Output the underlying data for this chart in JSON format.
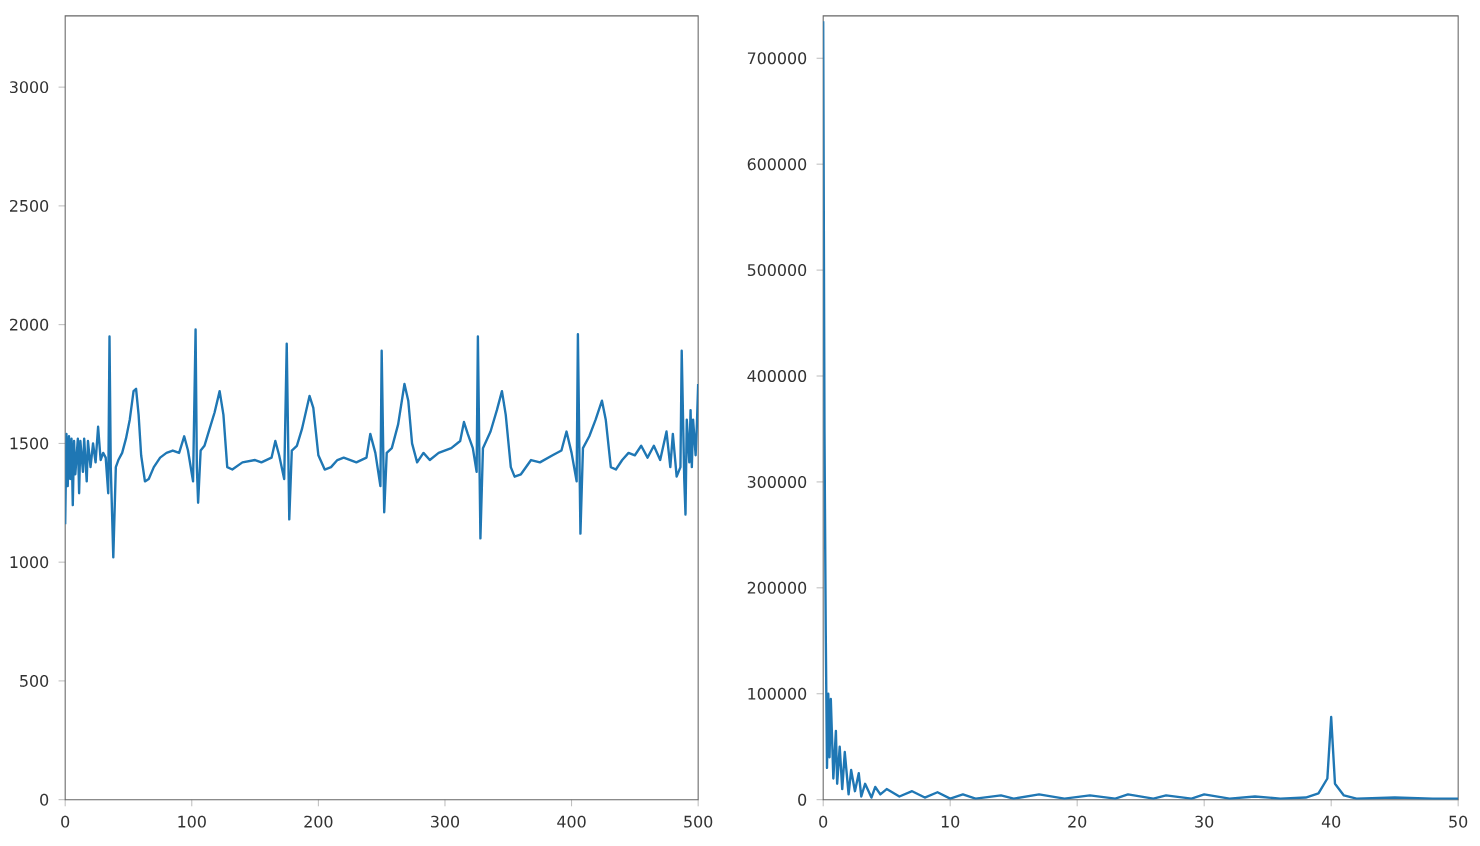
{
  "chart_data": [
    {
      "type": "line",
      "color": "#1f77b4",
      "xlim": [
        0,
        500
      ],
      "ylim": [
        0,
        3300
      ],
      "xticks": [
        0,
        100,
        200,
        300,
        400,
        500
      ],
      "yticks": [
        0,
        500,
        1000,
        1500,
        2000,
        2500,
        3000
      ],
      "x": [
        0,
        1,
        2,
        3,
        4,
        5,
        6,
        7,
        8,
        10,
        11,
        12,
        14,
        15,
        17,
        18,
        20,
        22,
        24,
        26,
        28,
        30,
        32,
        34,
        35,
        36,
        38,
        40,
        42,
        45,
        48,
        51,
        54,
        56,
        58,
        60,
        63,
        66,
        70,
        75,
        80,
        85,
        90,
        94,
        97,
        101,
        103,
        104,
        105,
        107,
        110,
        114,
        118,
        122,
        125,
        128,
        132,
        140,
        150,
        155,
        163,
        166,
        169,
        173,
        175,
        177,
        179,
        183,
        187,
        193,
        196,
        200,
        205,
        210,
        215,
        220,
        230,
        238,
        241,
        245,
        249,
        250,
        252,
        254,
        258,
        263,
        268,
        271,
        274,
        278,
        283,
        288,
        295,
        305,
        312,
        315,
        318,
        322,
        325,
        326,
        328,
        330,
        336,
        341,
        345,
        348,
        352,
        355,
        360,
        368,
        375,
        385,
        392,
        396,
        400,
        404,
        405,
        407,
        409,
        414,
        419,
        424,
        427,
        431,
        435,
        440,
        445,
        450,
        455,
        460,
        465,
        470,
        475,
        478,
        480,
        483,
        486,
        487,
        489,
        490,
        491,
        493,
        494,
        495,
        496,
        498,
        499,
        500
      ],
      "values": [
        1160,
        1540,
        1320,
        1530,
        1350,
        1520,
        1240,
        1510,
        1370,
        1520,
        1290,
        1510,
        1380,
        1520,
        1340,
        1510,
        1400,
        1500,
        1420,
        1570,
        1430,
        1460,
        1440,
        1290,
        1950,
        1400,
        1020,
        1400,
        1430,
        1460,
        1520,
        1600,
        1720,
        1730,
        1620,
        1450,
        1340,
        1350,
        1400,
        1440,
        1460,
        1470,
        1460,
        1530,
        1470,
        1340,
        1980,
        1400,
        1250,
        1470,
        1490,
        1560,
        1630,
        1720,
        1620,
        1400,
        1390,
        1420,
        1430,
        1420,
        1440,
        1510,
        1450,
        1350,
        1920,
        1180,
        1470,
        1490,
        1560,
        1700,
        1650,
        1450,
        1390,
        1400,
        1430,
        1440,
        1420,
        1440,
        1540,
        1460,
        1320,
        1890,
        1210,
        1460,
        1480,
        1580,
        1750,
        1680,
        1500,
        1420,
        1460,
        1430,
        1460,
        1480,
        1510,
        1590,
        1540,
        1480,
        1380,
        1950,
        1100,
        1480,
        1550,
        1640,
        1720,
        1620,
        1400,
        1360,
        1370,
        1430,
        1420,
        1450,
        1470,
        1550,
        1460,
        1340,
        1960,
        1120,
        1480,
        1530,
        1600,
        1680,
        1600,
        1400,
        1390,
        1430,
        1460,
        1450,
        1490,
        1440,
        1490,
        1430,
        1550,
        1400,
        1540,
        1360,
        1400,
        1890,
        1350,
        1200,
        1600,
        1420,
        1640,
        1400,
        1600,
        1450,
        1580,
        1750
      ]
    },
    {
      "type": "line",
      "color": "#1f77b4",
      "xlim": [
        0,
        50
      ],
      "ylim": [
        0,
        740000
      ],
      "xticks": [
        0,
        10,
        20,
        30,
        40,
        50
      ],
      "yticks": [
        0,
        100000,
        200000,
        300000,
        400000,
        500000,
        600000,
        700000
      ],
      "x": [
        0,
        0.1,
        0.2,
        0.3,
        0.4,
        0.5,
        0.6,
        0.8,
        1.0,
        1.1,
        1.3,
        1.5,
        1.7,
        2.0,
        2.2,
        2.5,
        2.8,
        3.0,
        3.3,
        3.8,
        4.1,
        4.5,
        5,
        6,
        7,
        8,
        9,
        10,
        11,
        12,
        14,
        15,
        17,
        19,
        21,
        23,
        24,
        26,
        27,
        29,
        30,
        32,
        34,
        36,
        38,
        39,
        39.7,
        40,
        40.3,
        41,
        42,
        45,
        48,
        50
      ],
      "values": [
        735000,
        350000,
        160000,
        30000,
        100000,
        40000,
        95000,
        20000,
        65000,
        15000,
        50000,
        10000,
        45000,
        5000,
        28000,
        8000,
        25000,
        3000,
        15000,
        2000,
        12000,
        5000,
        10000,
        3000,
        8000,
        2000,
        7000,
        1000,
        5000,
        1000,
        4000,
        1000,
        5000,
        1000,
        4000,
        1000,
        5000,
        1000,
        4000,
        1000,
        5000,
        1000,
        3000,
        1000,
        2000,
        6000,
        20000,
        78000,
        15000,
        4000,
        1000,
        2000,
        1000,
        1000
      ]
    }
  ]
}
